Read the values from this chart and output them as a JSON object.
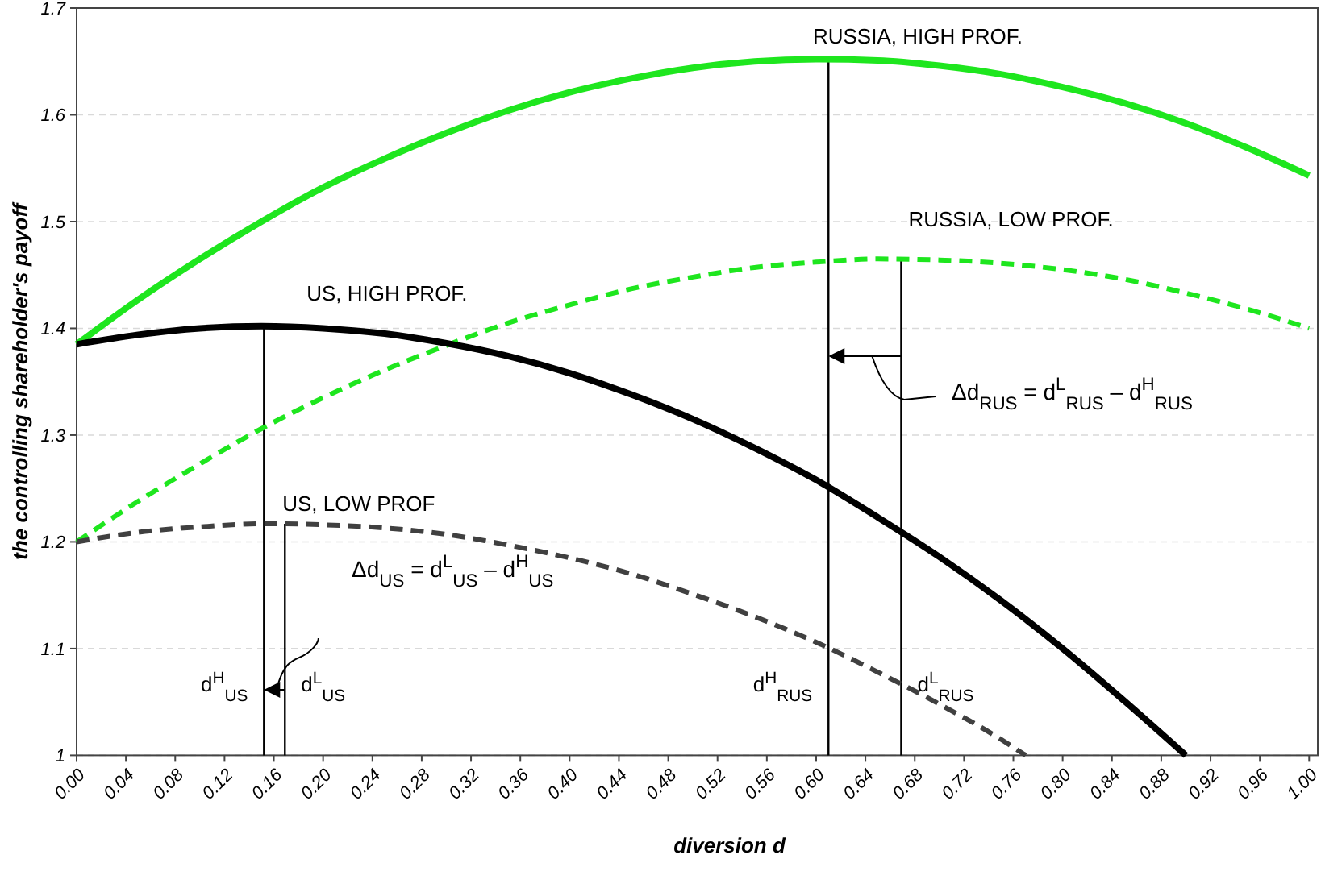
{
  "chart_data": {
    "type": "line",
    "xlabel": "diversion d",
    "ylabel": "the controlling shareholder's payoff",
    "x": [
      0,
      0.05,
      0.1,
      0.15,
      0.2,
      0.25,
      0.3,
      0.35,
      0.4,
      0.45,
      0.5,
      0.55,
      0.6,
      0.65,
      0.7,
      0.75,
      0.8,
      0.85,
      0.9,
      0.95,
      1.0
    ],
    "series": [
      {
        "name": "RUSSIA, HIGH PROF.",
        "color": "#1ee61e",
        "line_style": "solid",
        "values": [
          1.385,
          1.427,
          1.465,
          1.5,
          1.532,
          1.559,
          1.583,
          1.604,
          1.621,
          1.634,
          1.644,
          1.65,
          1.652,
          1.651,
          1.646,
          1.638,
          1.626,
          1.611,
          1.592,
          1.569,
          1.543
        ]
      },
      {
        "name": "RUSSIA, LOW PROF.",
        "color": "#1ee61e",
        "line_style": "dashed",
        "values": [
          1.2,
          1.238,
          1.273,
          1.306,
          1.335,
          1.361,
          1.384,
          1.405,
          1.422,
          1.437,
          1.448,
          1.457,
          1.462,
          1.465,
          1.464,
          1.461,
          1.455,
          1.446,
          1.433,
          1.418,
          1.4
        ]
      },
      {
        "name": "US, HIGH PROF.",
        "color": "#000000",
        "line_style": "solid",
        "x": [
          0,
          0.05,
          0.1,
          0.15,
          0.2,
          0.25,
          0.3,
          0.35,
          0.4,
          0.45,
          0.5,
          0.55,
          0.6,
          0.65,
          0.7,
          0.75,
          0.8,
          0.85,
          0.9
        ],
        "values": [
          1.385,
          1.394,
          1.4,
          1.402,
          1.4,
          1.395,
          1.386,
          1.374,
          1.358,
          1.338,
          1.315,
          1.288,
          1.258,
          1.223,
          1.186,
          1.145,
          1.1,
          1.051,
          1.0
        ]
      },
      {
        "name": "US, LOW PROF",
        "color": "#404040",
        "line_style": "dashed",
        "x": [
          0,
          0.05,
          0.1,
          0.15,
          0.2,
          0.25,
          0.3,
          0.35,
          0.4,
          0.45,
          0.5,
          0.55,
          0.6,
          0.65,
          0.7,
          0.75,
          0.77
        ],
        "values": [
          1.2,
          1.209,
          1.214,
          1.217,
          1.216,
          1.213,
          1.207,
          1.197,
          1.185,
          1.17,
          1.151,
          1.13,
          1.106,
          1.078,
          1.048,
          1.015,
          1.0
        ]
      }
    ],
    "xlim": [
      0,
      1.007
    ],
    "xticks": [
      {
        "value": 0,
        "label": "0.00"
      },
      {
        "value": 0.04,
        "label": "0.04"
      },
      {
        "value": 0.08,
        "label": "0.08"
      },
      {
        "value": 0.12,
        "label": "0.12"
      },
      {
        "value": 0.16,
        "label": "0.16"
      },
      {
        "value": 0.2,
        "label": "0.20"
      },
      {
        "value": 0.24,
        "label": "0.24"
      },
      {
        "value": 0.28,
        "label": "0.28"
      },
      {
        "value": 0.32,
        "label": "0.32"
      },
      {
        "value": 0.36,
        "label": "0.36"
      },
      {
        "value": 0.4,
        "label": "0.40"
      },
      {
        "value": 0.44,
        "label": "0.44"
      },
      {
        "value": 0.48,
        "label": "0.48"
      },
      {
        "value": 0.52,
        "label": "0.52"
      },
      {
        "value": 0.56,
        "label": "0.56"
      },
      {
        "value": 0.6,
        "label": "0.60"
      },
      {
        "value": 0.64,
        "label": "0.64"
      },
      {
        "value": 0.68,
        "label": "0.68"
      },
      {
        "value": 0.72,
        "label": "0.72"
      },
      {
        "value": 0.76,
        "label": "0.76"
      },
      {
        "value": 0.8,
        "label": "0.80"
      },
      {
        "value": 0.84,
        "label": "0.84"
      },
      {
        "value": 0.88,
        "label": "0.88"
      },
      {
        "value": 0.92,
        "label": "0.92"
      },
      {
        "value": 0.96,
        "label": "0.96"
      },
      {
        "value": 1.0,
        "label": "1.00"
      }
    ],
    "ylim": [
      1,
      1.7
    ],
    "yticks": [
      1,
      1.1,
      1.2,
      1.3,
      1.4,
      1.5,
      1.6,
      1.7
    ],
    "grid": "y",
    "ref_lines": [
      {
        "axis": "x",
        "value": 0.152,
        "label": "d$^{H}$$_{US}$",
        "color": "#000000"
      },
      {
        "axis": "x",
        "value": 0.169,
        "label": "d$^{L}$$_{US}$",
        "color": "#000000"
      },
      {
        "axis": "x",
        "value": 0.61,
        "label": "d$^{H}$$_{RUS}$",
        "color": "#000000"
      },
      {
        "axis": "x",
        "value": 0.669,
        "label": "d$^{L}$$_{RUS}$",
        "color": "#000000"
      }
    ],
    "annotations": [
      "Δd$_{US}$ = d$^{L}$$_{US}$ – d$^{H}$$_{US}$",
      "Δd$_{RUS}$ = d$^{L}$$_{RUS}$ – d$^{H}$$_{RUS}$"
    ]
  }
}
